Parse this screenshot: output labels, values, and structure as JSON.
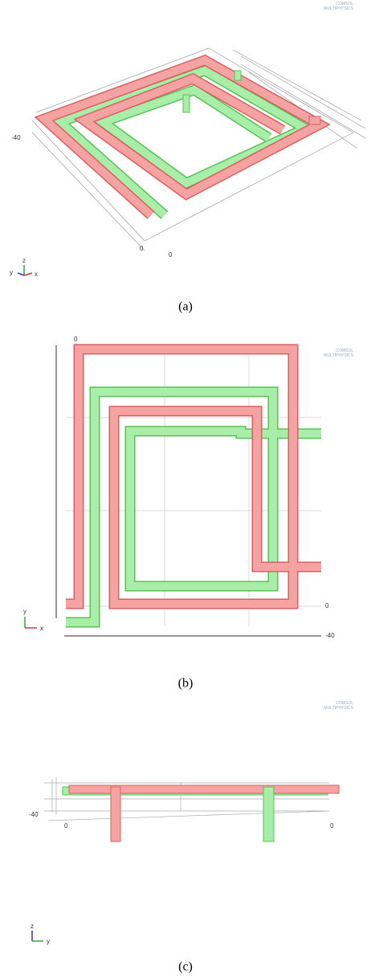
{
  "panels": [
    {
      "caption": "(a)",
      "logo": [
        "COMSOL",
        "MULTIPHYSICS"
      ],
      "axis_labels": [
        "-40",
        "0",
        "0"
      ],
      "triad": [
        "z",
        "y",
        "x"
      ]
    },
    {
      "caption": "(b)",
      "logo": [
        "COMSOL",
        "MULTIPHYSICS"
      ],
      "axis_labels": [
        "0",
        "0",
        "-40"
      ],
      "triad": [
        "y",
        "x"
      ]
    },
    {
      "caption": "(c)",
      "logo": [
        "COMSOL",
        "MULTIPHYSICS"
      ],
      "axis_labels": [
        "-40",
        "0",
        "0"
      ],
      "triad": [
        "z",
        "y"
      ]
    }
  ]
}
